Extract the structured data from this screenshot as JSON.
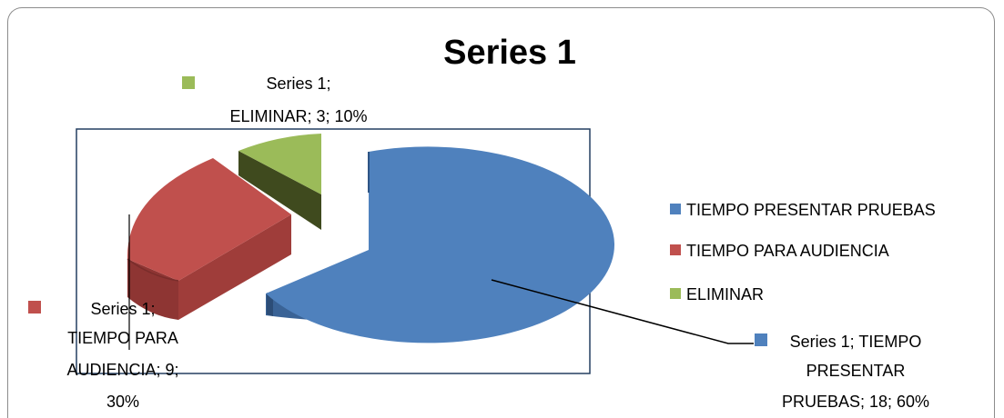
{
  "chart_data": {
    "type": "pie",
    "title": "Series 1",
    "series_name": "Series 1",
    "categories": [
      "TIEMPO PRESENTAR PRUEBAS",
      "TIEMPO PARA AUDIENCIA",
      "ELIMINAR"
    ],
    "values": [
      18,
      9,
      3
    ],
    "percentages": [
      "60%",
      "30%",
      "10%"
    ],
    "colors": [
      "#4F81BD",
      "#C0504D",
      "#9BBB59"
    ],
    "legend_position": "right",
    "data_labels": {
      "blue": [
        "Series 1; TIEMPO",
        "PRESENTAR",
        "PRUEBAS; 18; 60%"
      ],
      "red": [
        "Series 1;",
        "TIEMPO PARA",
        "AUDIENCIA; 9;",
        "30%"
      ],
      "green": [
        "Series 1;",
        "ELIMINAR; 3; 10%"
      ]
    }
  }
}
